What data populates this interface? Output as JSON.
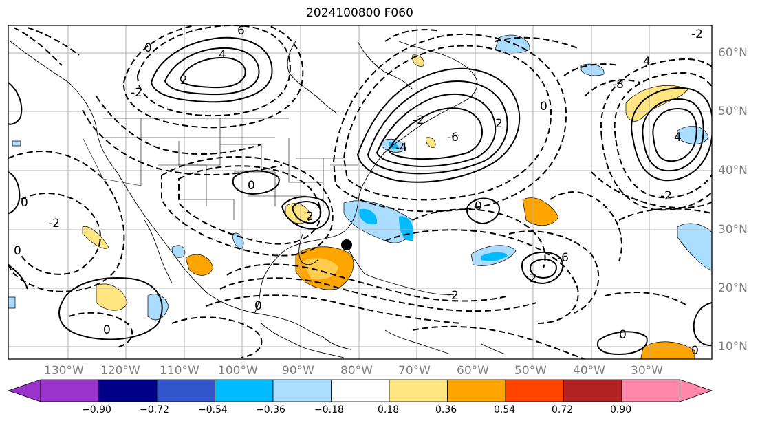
{
  "title": "2024100800 F060",
  "lon_labels": [
    "130°W",
    "120°W",
    "110°W",
    "100°W",
    "90°W",
    "80°W",
    "70°W",
    "60°W",
    "50°W",
    "40°W",
    "30°W"
  ],
  "lat_labels": [
    "60°N",
    "50°N",
    "40°N",
    "30°N",
    "20°N",
    "10°N"
  ],
  "colorbar": {
    "ticks": [
      "−0.90",
      "−0.72",
      "−0.54",
      "−0.36",
      "−0.18",
      "0.18",
      "0.36",
      "0.54",
      "0.72",
      "0.90"
    ],
    "colors": [
      "#9933cc",
      "#000088",
      "#3355cc",
      "#00bbff",
      "#aaddff",
      "#ffffff",
      "#ffe680",
      "#ffa500",
      "#ff4400",
      "#b22222",
      "#ff88aa"
    ]
  },
  "contour_labels": [
    "0",
    "2",
    "4",
    "6",
    "-2",
    "-4",
    "-6",
    "-8"
  ],
  "marker": "storm-center-dot"
}
